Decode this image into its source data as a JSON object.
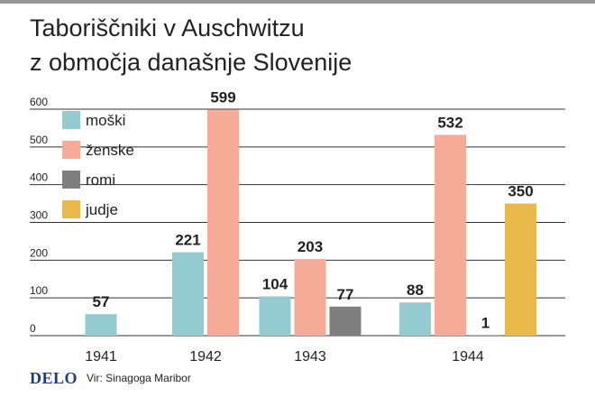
{
  "title": {
    "line1": "Taboriščniki v Auschwitzu",
    "line2": "z območja današnje Slovenije"
  },
  "colors": {
    "moski": "#93cbd1",
    "zenske": "#f5ab98",
    "romi": "#7f7f7f",
    "judje": "#e8b84a",
    "grid": "#333333"
  },
  "chart_data": {
    "type": "bar",
    "categories": [
      "1941",
      "1942",
      "1943",
      "1944"
    ],
    "ylim": [
      0,
      600
    ],
    "yticks": [
      0,
      100,
      200,
      300,
      400,
      500,
      600
    ],
    "grid": true,
    "legend_position": "top-left",
    "series": [
      {
        "name": "moški",
        "key": "moski",
        "values": [
          57,
          221,
          104,
          88
        ]
      },
      {
        "name": "ženske",
        "key": "zenske",
        "values": [
          null,
          599,
          203,
          532
        ]
      },
      {
        "name": "romi",
        "key": "romi",
        "values": [
          null,
          null,
          77,
          1
        ]
      },
      {
        "name": "judje",
        "key": "judje",
        "values": [
          null,
          null,
          null,
          350
        ]
      }
    ]
  },
  "footer": {
    "logo": "DELO",
    "source": "Vir: Sinagoga Maribor"
  }
}
